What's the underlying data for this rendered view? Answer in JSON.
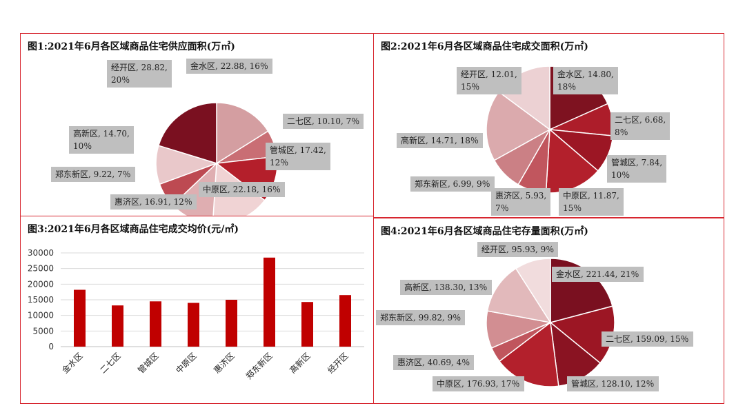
{
  "chart_data": [
    {
      "type": "pie",
      "title": "图1:2021年6月各区域商品住宅供应面积(万㎡)",
      "labels": [
        "金水区",
        "二七区",
        "管城区",
        "中原区",
        "惠济区",
        "郑东新区",
        "高新区",
        "经开区"
      ],
      "values": [
        22.88,
        10.1,
        17.42,
        22.18,
        16.91,
        9.22,
        14.7,
        28.82
      ],
      "percents": [
        "16％",
        "7％",
        "12％",
        "16％",
        "12％",
        "7％",
        "10％",
        "20％"
      ],
      "data_labels": [
        [
          "金水区, 22.88, 16％"
        ],
        [
          "二七区, 10.10, 7％"
        ],
        [
          "管城区, 17.42,",
          "12％"
        ],
        [
          "中原区, 22.18, 16％"
        ],
        [
          "惠济区, 16.91, 12％"
        ],
        [
          "郑东新区, 9.22, 7％"
        ],
        [
          "高新区, 14.70,",
          "10％"
        ],
        [
          "经开区, 28.82,",
          "20％"
        ]
      ],
      "colors": [
        "#d49ea1",
        "#c96e74",
        "#b41f2b",
        "#f0d3d4",
        "#dfaeb1",
        "#bd4a52",
        "#e9c8ca",
        "#7a1020"
      ]
    },
    {
      "type": "pie",
      "title": "图2:2021年6月各区域商品住宅成交面积(万㎡)",
      "labels": [
        "金水区",
        "二七区",
        "管城区",
        "中原区",
        "惠济区",
        "郑东新区",
        "高新区",
        "经开区"
      ],
      "values": [
        14.8,
        6.68,
        7.84,
        11.87,
        5.93,
        6.99,
        14.71,
        12.01
      ],
      "percents": [
        "18％",
        "8％",
        "10％",
        "15％",
        "7％",
        "9％",
        "18％",
        "15％"
      ],
      "data_labels": [
        [
          "金水区, 14.80,",
          "18％"
        ],
        [
          "二七区, 6.68,",
          "8％"
        ],
        [
          "管城区, 7.84,",
          "10％"
        ],
        [
          "中原区, 11.87,",
          "15％"
        ],
        [
          "惠济区, 5.93,",
          "7％"
        ],
        [
          "郑东新区, 6.99, 9％"
        ],
        [
          "高新区, 14.71, 18％"
        ],
        [
          "经开区, 12.01,",
          "15％"
        ]
      ],
      "colors": [
        "#7e1220",
        "#ad1d2a",
        "#9c1624",
        "#b3202c",
        "#c1565e",
        "#cb8085",
        "#dbaaad",
        "#ecd1d3"
      ]
    },
    {
      "type": "bar",
      "title": "图3:2021年6月各区域商品住宅成交均价(元/㎡)",
      "categories": [
        "金水区",
        "二七区",
        "管城区",
        "中原区",
        "惠济区",
        "郑东新区",
        "高新区",
        "经开区"
      ],
      "values": [
        18200,
        13200,
        14500,
        14000,
        15000,
        28500,
        14300,
        16500
      ],
      "ylim": [
        0,
        30000
      ],
      "yticks": [
        "0",
        "5000",
        "10000",
        "15000",
        "20000",
        "25000",
        "30000"
      ],
      "grid": true,
      "colors": [
        "#c00000"
      ]
    },
    {
      "type": "pie",
      "title": "图4:2021年6月各区域商品住宅存量面积(万㎡)",
      "labels": [
        "金水区",
        "二七区",
        "管城区",
        "中原区",
        "惠济区",
        "郑东新区",
        "高新区",
        "经开区"
      ],
      "values": [
        221.44,
        159.09,
        128.1,
        176.93,
        40.69,
        99.82,
        138.3,
        95.93
      ],
      "percents": [
        "21％",
        "15％",
        "12％",
        "17％",
        "4％",
        "9％",
        "13％",
        "9％"
      ],
      "data_labels": [
        [
          "金水区, 221.44, 21％"
        ],
        [
          "二七区, 159.09, 15％"
        ],
        [
          "管城区, 128.10, 12％"
        ],
        [
          "中原区, 176.93, 17％"
        ],
        [
          "惠济区, 40.69, 4％"
        ],
        [
          "郑东新区, 99.82, 9％"
        ],
        [
          "高新区, 138.30, 13％"
        ],
        [
          "经开区, 95.93, 9％"
        ]
      ],
      "colors": [
        "#7a1020",
        "#9c1624",
        "#8a1322",
        "#b3202c",
        "#c0555d",
        "#d28e92",
        "#e2b9bb",
        "#f1dcdd"
      ]
    }
  ]
}
